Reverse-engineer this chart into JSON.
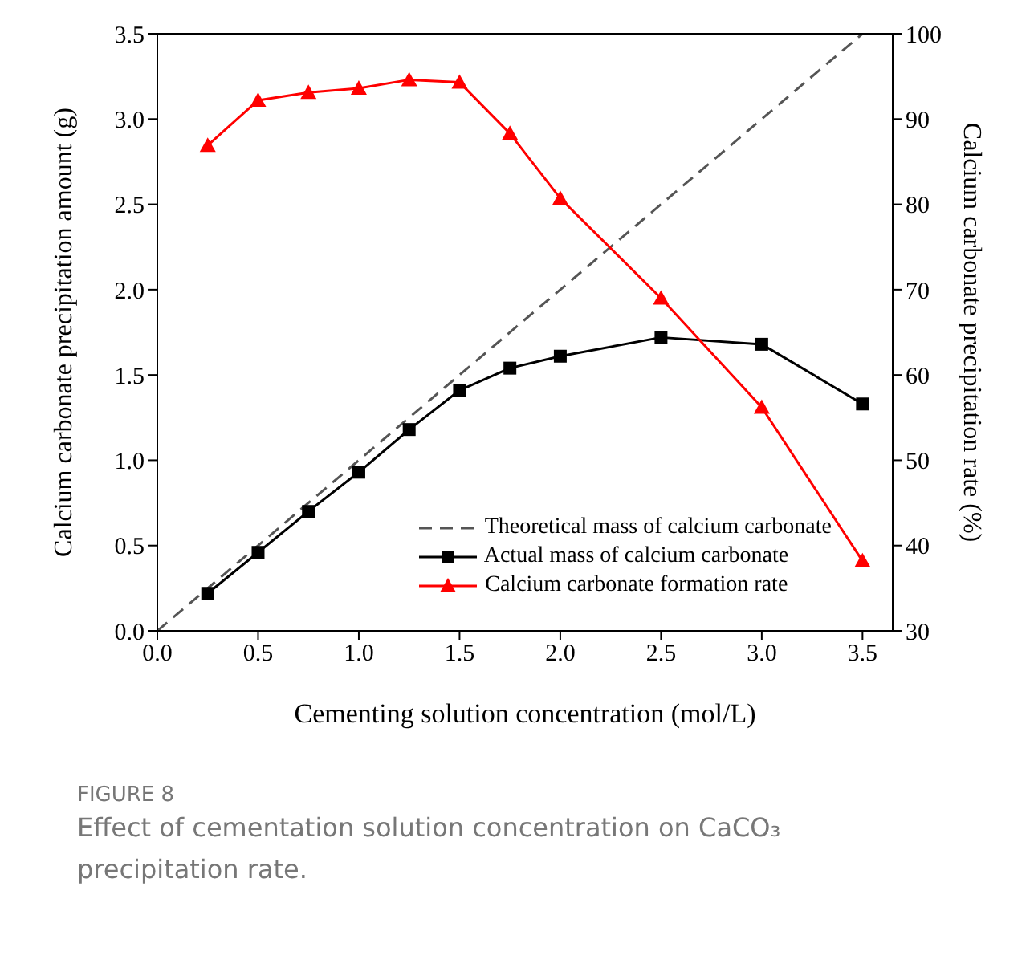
{
  "chart_data": {
    "type": "line",
    "title": "FIGURE 8",
    "subtitle": "Effect of cementation solution concentration on CaCO₃ precipitation rate.",
    "xlabel": "Cementing solution concentration (mol/L)",
    "ylabel": "Calcium carbonate precipitation amount (g)",
    "y2label": "Calcium carbonate precipitation rate (%)",
    "xlim": [
      0,
      3.65
    ],
    "xticks": [
      {
        "value": 0,
        "label": "0.0"
      },
      0.5,
      {
        "value": 1,
        "label": "1.0"
      },
      1.5,
      {
        "value": 2,
        "label": "2.0"
      },
      2.5,
      {
        "value": 3,
        "label": "3.0"
      },
      3.5
    ],
    "ylim": [
      0,
      3.5
    ],
    "yticks": [
      {
        "value": 0,
        "label": "0.0"
      },
      0.5,
      {
        "value": 1,
        "label": "1.0"
      },
      1.5,
      {
        "value": 2,
        "label": "2.0"
      },
      2.5,
      {
        "value": 3,
        "label": "3.0"
      },
      3.5
    ],
    "y2lim": [
      30,
      100
    ],
    "y2ticks": [
      30,
      40,
      50,
      60,
      70,
      80,
      90,
      100
    ],
    "grid": false,
    "legend": "bottom right",
    "series": [
      {
        "name": "Theoretical mass of calcium carbonate",
        "color": "#555555",
        "x": [
          0,
          3.5
        ],
        "values": [
          0,
          3.5
        ],
        "line_style": "dashed",
        "marker": "none"
      },
      {
        "name": "Actual mass of calcium carbonate",
        "color": "#000000",
        "x": [
          0.25,
          0.5,
          0.75,
          1.0,
          1.25,
          1.5,
          1.75,
          2.0,
          2.5,
          3.0,
          3.5
        ],
        "values": [
          0.22,
          0.46,
          0.7,
          0.93,
          1.18,
          1.41,
          1.54,
          1.61,
          1.72,
          1.68,
          1.33
        ],
        "line_style": "solid",
        "marker": "square"
      },
      {
        "name": "Calcium carbonate formation rate",
        "color": "#ff0000",
        "axis": "y2",
        "x": [
          0.25,
          0.5,
          0.75,
          1.0,
          1.25,
          1.5,
          1.75,
          2.0,
          2.5,
          3.0,
          3.5
        ],
        "values": [
          86.9,
          92.2,
          93.1,
          93.6,
          94.6,
          94.3,
          88.3,
          80.7,
          69.0,
          56.2,
          38.2
        ],
        "line_style": "solid",
        "marker": "triangle"
      }
    ]
  }
}
